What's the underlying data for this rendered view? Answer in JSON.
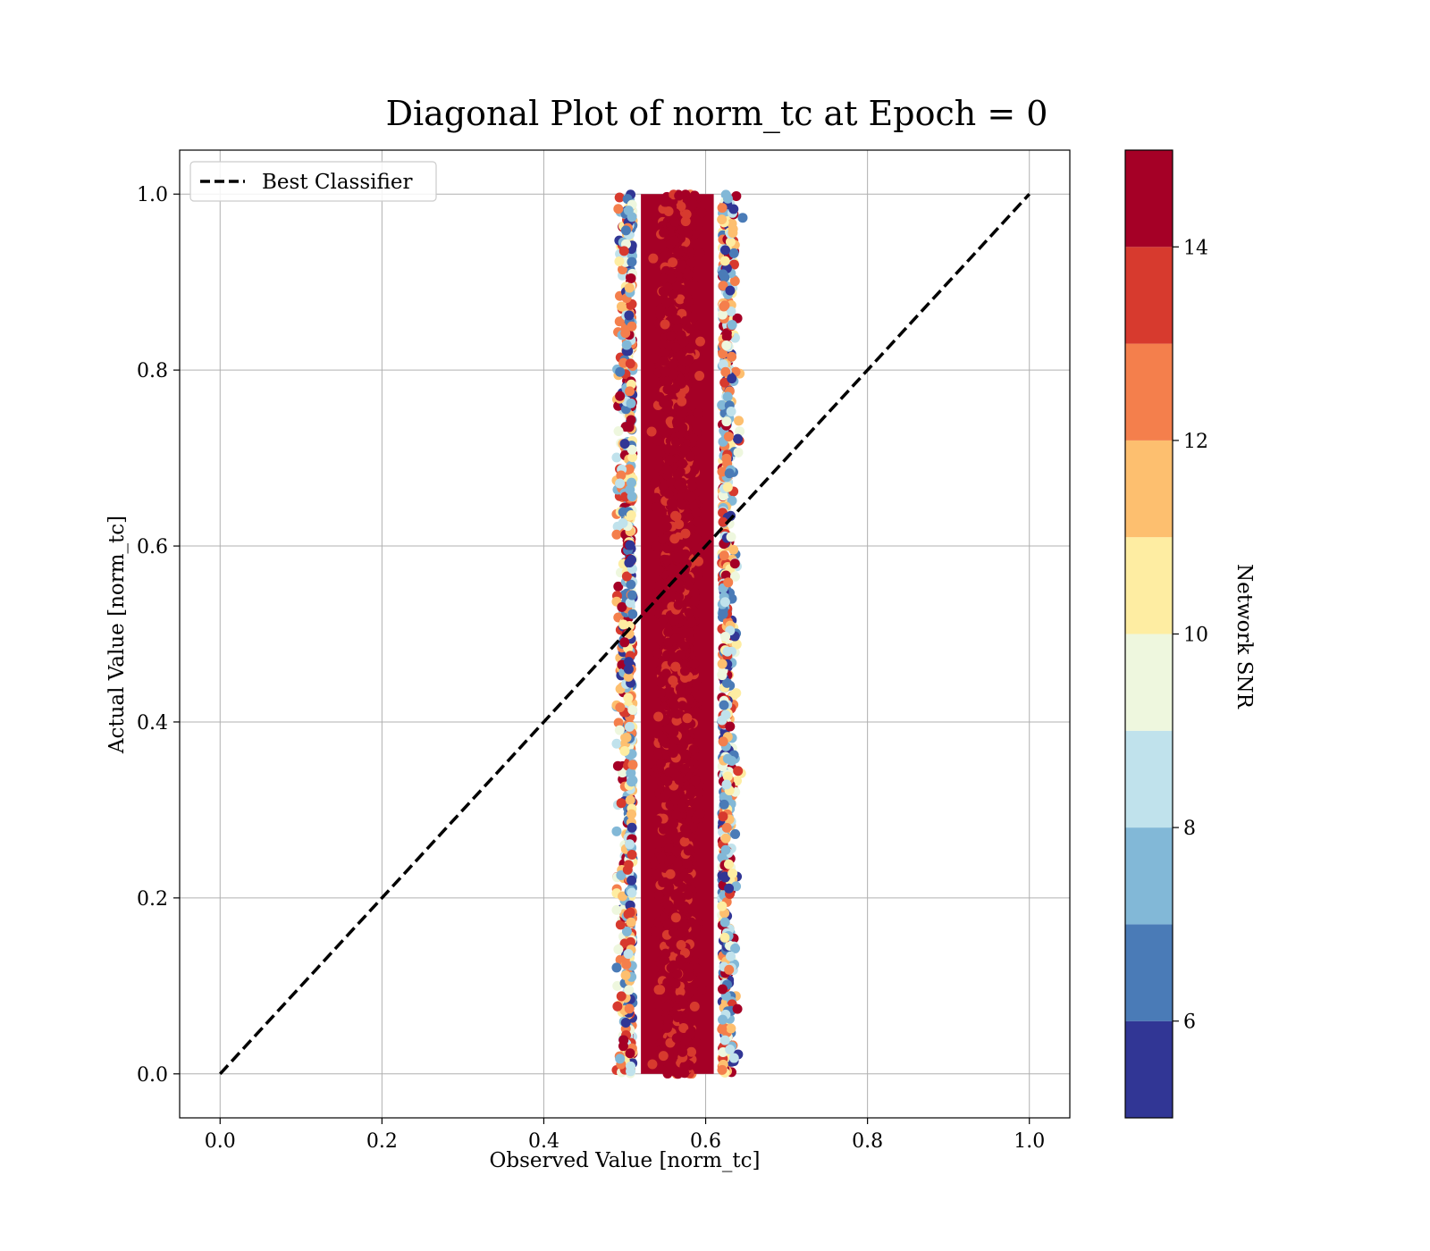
{
  "chart_data": {
    "type": "scatter",
    "title": "Diagonal Plot of norm_tc at Epoch = 0",
    "xlabel": "Observed Value [norm_tc]",
    "ylabel": "Actual Value [norm_tc]",
    "xlim": [
      -0.05,
      1.05
    ],
    "ylim": [
      -0.05,
      1.05
    ],
    "x_ticks": [
      "0.0",
      "0.2",
      "0.4",
      "0.6",
      "0.8",
      "1.0"
    ],
    "y_ticks": [
      "0.0",
      "0.2",
      "0.4",
      "0.6",
      "0.8",
      "1.0"
    ],
    "grid": true,
    "legend": {
      "placement": "top-left",
      "entries": [
        {
          "label": "Best Classifier",
          "style": "dashed",
          "color": "#000000"
        }
      ]
    },
    "reference_line": {
      "label": "Best Classifier",
      "x": [
        0.0,
        1.0
      ],
      "y": [
        0.0,
        1.0
      ]
    },
    "scatter_summary": {
      "x_center": 0.565,
      "x_core_range": [
        0.51,
        0.62
      ],
      "x_full_range": [
        0.49,
        0.65
      ],
      "y_range": [
        0.0,
        1.0
      ],
      "dominant_color_value": 15
    },
    "colorbar": {
      "label": "Network SNR",
      "range": [
        5,
        15
      ],
      "ticks": [
        "6",
        "8",
        "10",
        "12",
        "14"
      ],
      "tick_values": [
        6,
        8,
        10,
        12,
        14
      ],
      "colors": [
        "#313695",
        "#4a7bb7",
        "#82b8d7",
        "#c0e2ec",
        "#eef7de",
        "#feeda2",
        "#fdbf6f",
        "#f47f4c",
        "#d73a2e",
        "#a50026"
      ]
    }
  }
}
